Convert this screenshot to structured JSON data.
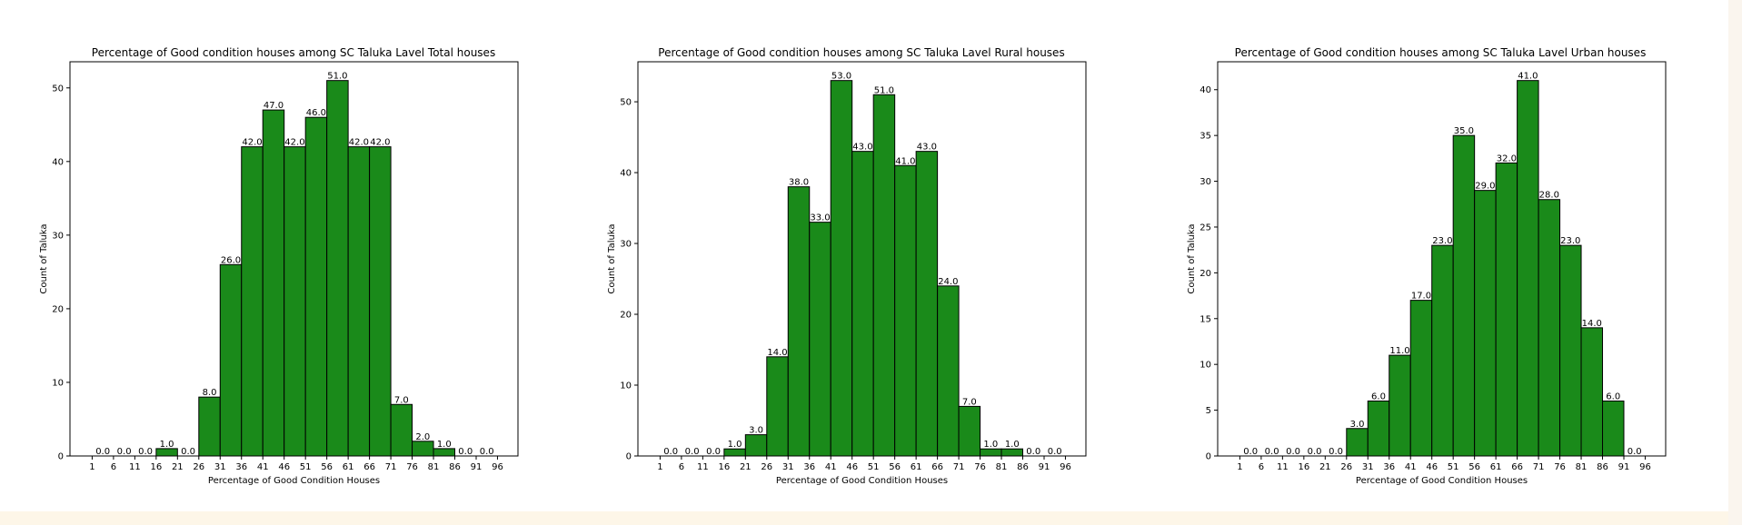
{
  "colors": {
    "bar": "#1a8a1a",
    "bar_edge": "#000000",
    "axis": "#000000",
    "text": "#000000"
  },
  "chart_data": [
    {
      "type": "bar",
      "title": "Percentage of Good condition houses among SC Taluka Lavel Total houses",
      "xlabel": "Percentage of Good Condition Houses",
      "ylabel": "Count of Taluka",
      "categories": [
        "1",
        "6",
        "11",
        "16",
        "21",
        "26",
        "31",
        "36",
        "41",
        "46",
        "51",
        "56",
        "61",
        "66",
        "71",
        "76",
        "81",
        "86",
        "91"
      ],
      "values": [
        0,
        0,
        0,
        1,
        0,
        8,
        26,
        42,
        47,
        42,
        46,
        51,
        42,
        42,
        7,
        2,
        1,
        0,
        0
      ],
      "data_labels": [
        "0.0",
        "0.0",
        "0.0",
        "1.0",
        "0.0",
        "8.0",
        "26.0",
        "42.0",
        "47.0",
        "42.0",
        "46.0",
        "51.0",
        "42.0",
        "42.0",
        "7.0",
        "2.0",
        "1.0",
        "0.0",
        "0.0"
      ],
      "xticks": [
        "1",
        "6",
        "11",
        "16",
        "21",
        "26",
        "31",
        "36",
        "41",
        "46",
        "51",
        "56",
        "61",
        "66",
        "71",
        "76",
        "81",
        "86",
        "91",
        "96"
      ],
      "yticks": [
        0,
        10,
        20,
        30,
        40,
        50
      ],
      "xlim": [
        -4.2,
        100.8
      ],
      "ylim": [
        0,
        53.55
      ]
    },
    {
      "type": "bar",
      "title": "Percentage of Good condition houses among SC Taluka Lavel Rural houses",
      "xlabel": "Percentage of Good Condition Houses",
      "ylabel": "Count of Taluka",
      "categories": [
        "1",
        "6",
        "11",
        "16",
        "21",
        "26",
        "31",
        "36",
        "41",
        "46",
        "51",
        "56",
        "61",
        "66",
        "71",
        "76",
        "81",
        "86",
        "91"
      ],
      "values": [
        0,
        0,
        0,
        1,
        3,
        14,
        38,
        33,
        53,
        43,
        51,
        41,
        43,
        24,
        7,
        1,
        1,
        0,
        0
      ],
      "data_labels": [
        "0.0",
        "0.0",
        "0.0",
        "1.0",
        "3.0",
        "14.0",
        "38.0",
        "33.0",
        "53.0",
        "43.0",
        "51.0",
        "41.0",
        "43.0",
        "24.0",
        "7.0",
        "1.0",
        "1.0",
        "0.0",
        "0.0"
      ],
      "xticks": [
        "1",
        "6",
        "11",
        "16",
        "21",
        "26",
        "31",
        "36",
        "41",
        "46",
        "51",
        "56",
        "61",
        "66",
        "71",
        "76",
        "81",
        "86",
        "91",
        "96"
      ],
      "yticks": [
        0,
        10,
        20,
        30,
        40,
        50
      ],
      "xlim": [
        -4.2,
        100.8
      ],
      "ylim": [
        0,
        55.65
      ]
    },
    {
      "type": "bar",
      "title": "Percentage of Good condition houses among SC Taluka Lavel Urban houses",
      "xlabel": "Percentage of Good Condition Houses",
      "ylabel": "Count of Taluka",
      "categories": [
        "1",
        "6",
        "11",
        "16",
        "21",
        "26",
        "31",
        "36",
        "41",
        "46",
        "51",
        "56",
        "61",
        "66",
        "71",
        "76",
        "81",
        "86",
        "91"
      ],
      "values": [
        0,
        0,
        0,
        0,
        0,
        3,
        6,
        11,
        17,
        23,
        35,
        29,
        32,
        41,
        28,
        23,
        14,
        6,
        0
      ],
      "data_labels": [
        "0.0",
        "0.0",
        "0.0",
        "0.0",
        "0.0",
        "3.0",
        "6.0",
        "11.0",
        "17.0",
        "23.0",
        "35.0",
        "29.0",
        "32.0",
        "41.0",
        "28.0",
        "23.0",
        "14.0",
        "6.0",
        "0.0"
      ],
      "xticks": [
        "1",
        "6",
        "11",
        "16",
        "21",
        "26",
        "31",
        "36",
        "41",
        "46",
        "51",
        "56",
        "61",
        "66",
        "71",
        "76",
        "81",
        "86",
        "91",
        "96"
      ],
      "yticks": [
        0,
        5,
        10,
        15,
        20,
        25,
        30,
        35,
        40
      ],
      "xlim": [
        -4.2,
        100.8
      ],
      "ylim": [
        0,
        43.05
      ]
    }
  ]
}
